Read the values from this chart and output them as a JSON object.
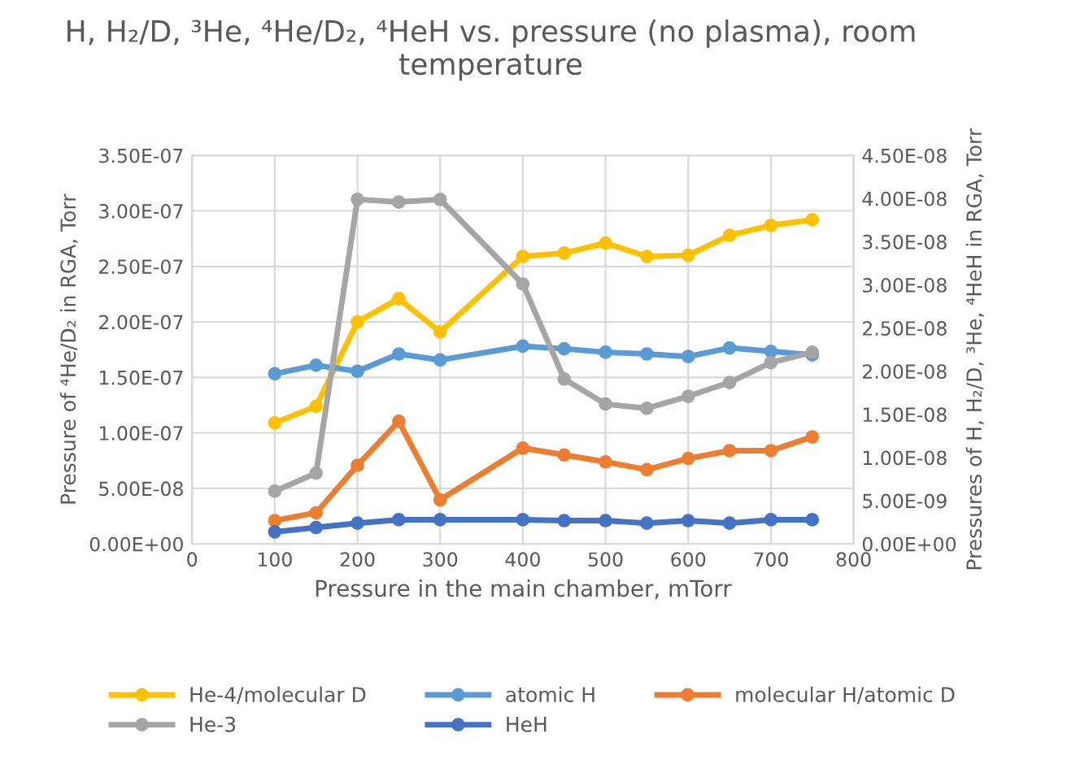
{
  "chart_data": {
    "type": "line",
    "title": "H, H₂/D, ³He, ⁴He/D₂, ⁴HeH vs. pressure (no plasma), room temperature",
    "xlabel": "Pressure in the main chamber, mTorr",
    "ylabel": "Pressure of ⁴He/D₂ in RGA, Torr",
    "y2label": "Pressures of H, H₂/D, ³He, ⁴HeH in RGA, Torr",
    "x": [
      100,
      150,
      200,
      250,
      300,
      400,
      450,
      500,
      550,
      600,
      650,
      700,
      750
    ],
    "series": [
      {
        "name": "He-4/molecular D",
        "color": "#ffc000",
        "values": [
          1.09e-07,
          1.24e-07,
          2e-07,
          2.21e-07,
          1.91e-07,
          2.59e-07,
          2.62e-07,
          2.71e-07,
          2.59e-07,
          2.6e-07,
          2.78e-07,
          2.87e-07,
          2.92e-07
        ]
      },
      {
        "name": "atomic H",
        "color": "#5b9bd5",
        "axis": "y2",
        "values": [
          1.97e-08,
          2.07e-08,
          2e-08,
          2.2e-08,
          2.13e-08,
          2.29e-08,
          2.26e-08,
          2.22e-08,
          2.2e-08,
          2.17e-08,
          2.27e-08,
          2.23e-08,
          2.19e-08
        ]
      },
      {
        "name": "molecular H/atomic D",
        "color": "#ed7d31",
        "axis": "y2",
        "values": [
          2.7e-09,
          3.6e-09,
          9.1e-09,
          1.42e-08,
          5.1e-09,
          1.11e-08,
          1.03e-08,
          9.5e-09,
          8.6e-09,
          9.9e-09,
          1.08e-08,
          1.08e-08,
          1.24e-08
        ]
      },
      {
        "name": "He-3",
        "color": "#a5a5a5",
        "axis": "y2",
        "values": [
          6.1e-09,
          8.2e-09,
          3.99e-08,
          3.96e-08,
          3.99e-08,
          3.01e-08,
          1.91e-08,
          1.62e-08,
          1.57e-08,
          1.71e-08,
          1.87e-08,
          2.1e-08,
          2.22e-08
        ]
      },
      {
        "name": "HeH",
        "color": "#4472c4",
        "axis": "y2",
        "values": [
          1.4e-09,
          1.9e-09,
          2.4e-09,
          2.8e-09,
          2.8e-09,
          2.8e-09,
          2.7e-09,
          2.7e-09,
          2.4e-09,
          2.7e-09,
          2.4e-09,
          2.8e-09,
          2.8e-09
        ]
      }
    ],
    "xlim": [
      0,
      800
    ],
    "xticks": [
      0,
      100,
      200,
      300,
      400,
      500,
      600,
      700,
      800
    ],
    "ylim": [
      0,
      3.5e-07
    ],
    "yticks": [
      {
        "value": 0,
        "label": "0.00E+00"
      },
      {
        "value": 5e-08,
        "label": "5.00E-08"
      },
      {
        "value": 1e-07,
        "label": "1.00E-07"
      },
      {
        "value": 1.5e-07,
        "label": "1.50E-07"
      },
      {
        "value": 2e-07,
        "label": "2.00E-07"
      },
      {
        "value": 2.5e-07,
        "label": "2.50E-07"
      },
      {
        "value": 3e-07,
        "label": "3.00E-07"
      },
      {
        "value": 3.5e-07,
        "label": "3.50E-07"
      }
    ],
    "y2lim": [
      0,
      4.5e-08
    ],
    "y2ticks": [
      {
        "value": 0,
        "label": "0.00E+00"
      },
      {
        "value": 5e-09,
        "label": "5.00E-09"
      },
      {
        "value": 1e-08,
        "label": "1.00E-08"
      },
      {
        "value": 1.5e-08,
        "label": "1.50E-08"
      },
      {
        "value": 2e-08,
        "label": "2.00E-08"
      },
      {
        "value": 2.5e-08,
        "label": "2.50E-08"
      },
      {
        "value": 3e-08,
        "label": "3.00E-08"
      },
      {
        "value": 3.5e-08,
        "label": "3.50E-08"
      },
      {
        "value": 4e-08,
        "label": "4.00E-08"
      },
      {
        "value": 4.5e-08,
        "label": "4.50E-08"
      }
    ],
    "grid": true,
    "legend": "bottom",
    "marker": "circle",
    "line_style": "solid"
  }
}
